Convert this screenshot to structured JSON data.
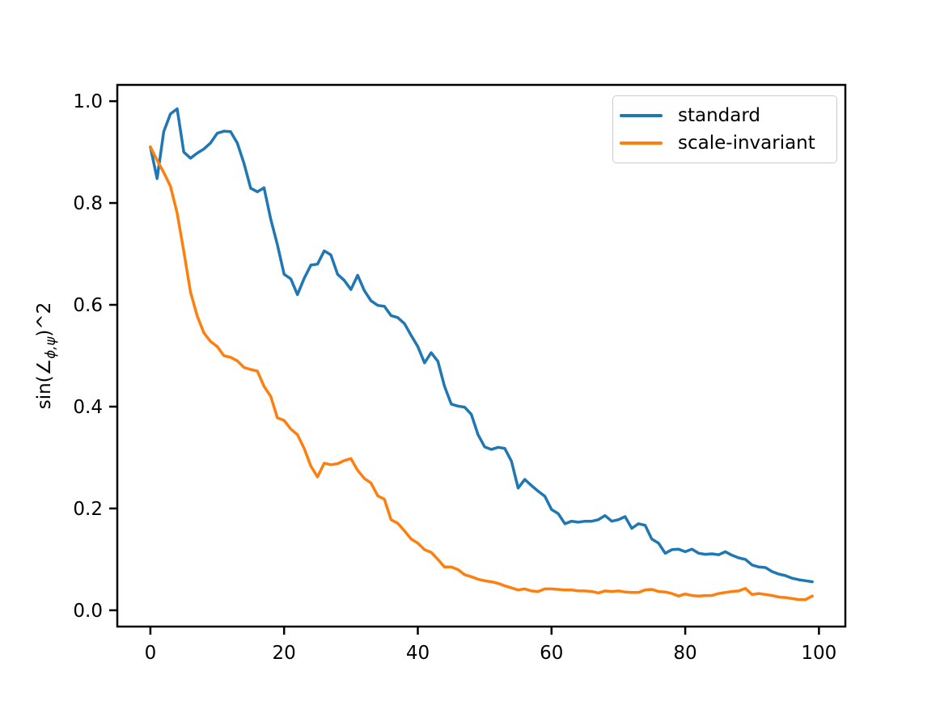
{
  "chart_data": {
    "type": "line",
    "title": "",
    "xlabel": "",
    "ylabel": {
      "prefix": "sin(",
      "angle_symbol": "∠",
      "subscript": "ϕ,ψ",
      "suffix": ")^2"
    },
    "xlim": [
      -4.95,
      103.95
    ],
    "ylim": [
      -0.032,
      1.032
    ],
    "xticks": [
      0,
      20,
      40,
      60,
      80,
      100
    ],
    "xtick_labels": [
      "0",
      "20",
      "40",
      "60",
      "80",
      "100"
    ],
    "yticks": [
      0.0,
      0.2,
      0.4,
      0.6,
      0.8,
      1.0
    ],
    "ytick_labels": [
      "0.0",
      "0.2",
      "0.4",
      "0.6",
      "0.8",
      "1.0"
    ],
    "grid": false,
    "legend_position": "upper right",
    "axis_color": "#000000",
    "x": [
      0,
      1,
      2,
      3,
      4,
      5,
      6,
      7,
      8,
      9,
      10,
      11,
      12,
      13,
      14,
      15,
      16,
      17,
      18,
      19,
      20,
      21,
      22,
      23,
      24,
      25,
      26,
      27,
      28,
      29,
      30,
      31,
      32,
      33,
      34,
      35,
      36,
      37,
      38,
      39,
      40,
      41,
      42,
      43,
      44,
      45,
      46,
      47,
      48,
      49,
      50,
      51,
      52,
      53,
      54,
      55,
      56,
      57,
      58,
      59,
      60,
      61,
      62,
      63,
      64,
      65,
      66,
      67,
      68,
      69,
      70,
      71,
      72,
      73,
      74,
      75,
      76,
      77,
      78,
      79,
      80,
      81,
      82,
      83,
      84,
      85,
      86,
      87,
      88,
      89,
      90,
      91,
      92,
      93,
      94,
      95,
      96,
      97,
      98,
      99
    ],
    "series": [
      {
        "name": "standard",
        "color": "#1f77b4",
        "values": [
          0.91,
          0.848,
          0.94,
          0.975,
          0.985,
          0.9,
          0.888,
          0.898,
          0.906,
          0.918,
          0.937,
          0.941,
          0.94,
          0.918,
          0.878,
          0.829,
          0.822,
          0.83,
          0.768,
          0.718,
          0.66,
          0.651,
          0.62,
          0.652,
          0.678,
          0.68,
          0.706,
          0.698,
          0.66,
          0.648,
          0.63,
          0.658,
          0.628,
          0.608,
          0.599,
          0.597,
          0.579,
          0.575,
          0.563,
          0.54,
          0.518,
          0.486,
          0.506,
          0.489,
          0.44,
          0.405,
          0.401,
          0.399,
          0.385,
          0.345,
          0.321,
          0.316,
          0.32,
          0.318,
          0.293,
          0.24,
          0.257,
          0.245,
          0.234,
          0.224,
          0.198,
          0.19,
          0.17,
          0.175,
          0.173,
          0.175,
          0.175,
          0.178,
          0.186,
          0.175,
          0.178,
          0.184,
          0.161,
          0.17,
          0.167,
          0.14,
          0.132,
          0.112,
          0.119,
          0.12,
          0.115,
          0.12,
          0.112,
          0.11,
          0.111,
          0.109,
          0.115,
          0.108,
          0.103,
          0.1,
          0.089,
          0.085,
          0.084,
          0.076,
          0.071,
          0.068,
          0.063,
          0.06,
          0.058,
          0.056
        ]
      },
      {
        "name": "scale-invariant",
        "color": "#ff7f0e",
        "values": [
          0.91,
          0.884,
          0.86,
          0.833,
          0.78,
          0.705,
          0.625,
          0.578,
          0.545,
          0.528,
          0.518,
          0.5,
          0.497,
          0.49,
          0.477,
          0.473,
          0.47,
          0.44,
          0.42,
          0.378,
          0.373,
          0.356,
          0.345,
          0.318,
          0.283,
          0.262,
          0.289,
          0.286,
          0.288,
          0.294,
          0.298,
          0.275,
          0.259,
          0.25,
          0.225,
          0.218,
          0.178,
          0.171,
          0.156,
          0.14,
          0.132,
          0.119,
          0.114,
          0.1,
          0.085,
          0.085,
          0.08,
          0.07,
          0.066,
          0.061,
          0.058,
          0.056,
          0.053,
          0.048,
          0.044,
          0.04,
          0.042,
          0.038,
          0.037,
          0.042,
          0.042,
          0.041,
          0.04,
          0.04,
          0.038,
          0.038,
          0.037,
          0.034,
          0.038,
          0.037,
          0.038,
          0.036,
          0.035,
          0.035,
          0.04,
          0.041,
          0.037,
          0.036,
          0.033,
          0.028,
          0.032,
          0.029,
          0.028,
          0.029,
          0.029,
          0.033,
          0.035,
          0.037,
          0.038,
          0.043,
          0.031,
          0.033,
          0.031,
          0.029,
          0.026,
          0.025,
          0.023,
          0.021,
          0.021,
          0.028
        ]
      }
    ]
  }
}
